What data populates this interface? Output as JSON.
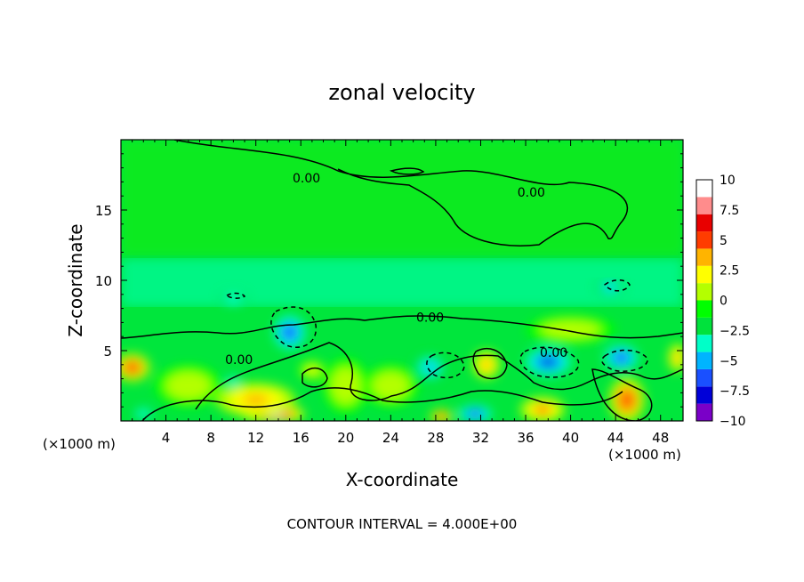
{
  "chart_data": {
    "type": "heatmap",
    "title": "zonal velocity",
    "xlabel": "X-coordinate",
    "ylabel": "Z-coordinate",
    "x_unit_left": "(×1000 m)",
    "x_unit_right": "(×1000 m)",
    "footer": "CONTOUR INTERVAL = 4.000E+00",
    "xlim": [
      0,
      50
    ],
    "ylim": [
      0,
      20
    ],
    "x_ticks": [
      4,
      8,
      12,
      16,
      20,
      24,
      28,
      32,
      36,
      40,
      44,
      48
    ],
    "x_tick_labels": [
      "4",
      "8",
      "12",
      "16",
      "20",
      "24",
      "28",
      "32",
      "36",
      "40",
      "44",
      "48"
    ],
    "y_ticks": [
      5,
      10,
      15
    ],
    "y_tick_labels": [
      "5",
      "10",
      "15"
    ],
    "colorbar": {
      "range": [
        -10,
        10
      ],
      "ticks": [
        10,
        7.5,
        5,
        2.5,
        0,
        -2.5,
        -5,
        -7.5,
        -10
      ],
      "tick_labels": [
        "10",
        "7.5",
        "5",
        "2.5",
        "0",
        "−2.5",
        "−5",
        "−7.5",
        "−10"
      ],
      "colors": [
        "#7a00c8",
        "#0000d8",
        "#1a50ff",
        "#00b4ff",
        "#00ffc8",
        "#00e23c",
        "#00ff00",
        "#b4ff00",
        "#ffff00",
        "#ffb400",
        "#ff3c00",
        "#e80000",
        "#ff8c8c",
        "#ffffff"
      ]
    },
    "contour_labels": [
      {
        "text": "0.00",
        "x": 16.5,
        "z": 17.2
      },
      {
        "text": "0.00",
        "x": 36.5,
        "z": 16.2
      },
      {
        "text": "0.00",
        "x": 27.5,
        "z": 7.3
      },
      {
        "text": "0.00",
        "x": 38.5,
        "z": 4.8
      },
      {
        "text": "0.00",
        "x": 10.5,
        "z": 4.3
      }
    ],
    "features": [
      {
        "x": 1.0,
        "z": 3.8,
        "v": 7.5,
        "sx": 1.6,
        "sz": 1.0
      },
      {
        "x": 13.5,
        "z": 0.5,
        "v": 12,
        "sx": 2.8,
        "sz": 0.6
      },
      {
        "x": 12.0,
        "z": 1.5,
        "v": 5,
        "sx": 3.5,
        "sz": 1.2
      },
      {
        "x": 15.0,
        "z": 6.3,
        "v": -6,
        "sx": 1.4,
        "sz": 1.2
      },
      {
        "x": 17.0,
        "z": 3.6,
        "v": 4,
        "sx": 1.2,
        "sz": 0.7
      },
      {
        "x": 20.0,
        "z": 2.5,
        "v": 3,
        "sx": 2.0,
        "sz": 2.0
      },
      {
        "x": 27.5,
        "z": 3.8,
        "v": -5,
        "sx": 1.5,
        "sz": 1.0
      },
      {
        "x": 28.5,
        "z": 0.3,
        "v": 8,
        "sx": 1.0,
        "sz": 0.5
      },
      {
        "x": 32.5,
        "z": 4.0,
        "v": 6,
        "sx": 1.2,
        "sz": 1.0
      },
      {
        "x": 31.5,
        "z": 0.5,
        "v": -6,
        "sx": 1.5,
        "sz": 0.6
      },
      {
        "x": 38.0,
        "z": 4.2,
        "v": -7,
        "sx": 2.0,
        "sz": 1.0
      },
      {
        "x": 37.5,
        "z": 0.8,
        "v": 7,
        "sx": 2.0,
        "sz": 0.9
      },
      {
        "x": 44.5,
        "z": 4.5,
        "v": -6,
        "sx": 1.5,
        "sz": 0.9
      },
      {
        "x": 45.0,
        "z": 1.5,
        "v": 7.5,
        "sx": 1.6,
        "sz": 1.6
      },
      {
        "x": 49.5,
        "z": 4.5,
        "v": 6,
        "sx": 0.8,
        "sz": 1.0
      },
      {
        "x": 24.0,
        "z": 2.5,
        "v": 3,
        "sx": 2.5,
        "sz": 1.5
      },
      {
        "x": 6.0,
        "z": 2.5,
        "v": 3,
        "sx": 3.0,
        "sz": 1.5
      },
      {
        "x": 10.0,
        "z": 8.7,
        "v": -3,
        "sx": 1.2,
        "sz": 0.5
      },
      {
        "x": 43.5,
        "z": 9.5,
        "v": -4,
        "sx": 1.2,
        "sz": 0.7
      },
      {
        "x": 10.0,
        "z": 2.8,
        "v": -3,
        "sx": 0.8,
        "sz": 0.5
      },
      {
        "x": 40.0,
        "z": 6.5,
        "v": 3,
        "sx": 4.0,
        "sz": 1.0
      },
      {
        "x": 2.0,
        "z": 0.5,
        "v": -3,
        "sx": 1.0,
        "sz": 0.5
      }
    ]
  }
}
